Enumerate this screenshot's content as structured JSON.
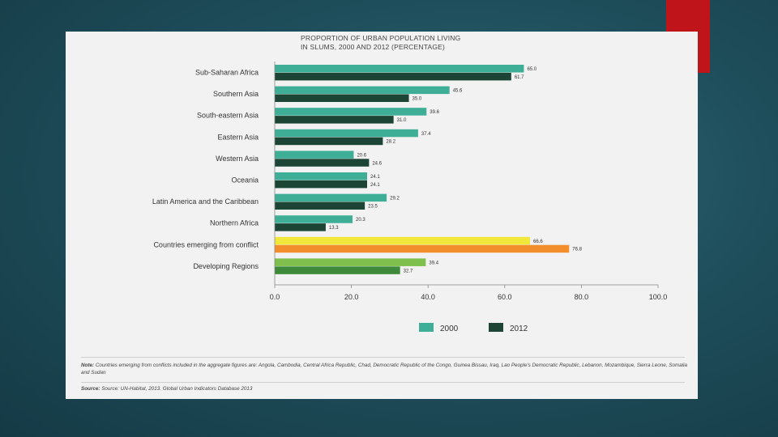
{
  "chart_data": {
    "type": "bar",
    "orientation": "horizontal",
    "title_lines": [
      "PROPORTION OF URBAN POPULATION LIVING",
      "IN SLUMS, 2000 AND 2012 (PERCENTAGE)"
    ],
    "categories": [
      "Sub-Saharan Africa",
      "Southern Asia",
      "South-eastern Asia",
      "Eastern Asia",
      "Western Asia",
      "Oceania",
      "Latin America and the Caribbean",
      "Northern Africa",
      "Countries emerging from conflict",
      "Developing Regions"
    ],
    "series": [
      {
        "name": "2000",
        "values": [
          65.0,
          45.6,
          39.6,
          37.4,
          20.6,
          24.1,
          29.2,
          20.3,
          66.6,
          39.4
        ]
      },
      {
        "name": "2012",
        "values": [
          61.7,
          35.0,
          31.0,
          28.2,
          24.6,
          24.1,
          23.5,
          13.3,
          76.8,
          32.7
        ]
      }
    ],
    "value_labels": [
      [
        "65.0",
        "61.7"
      ],
      [
        "45.6",
        "35.0"
      ],
      [
        "39.6",
        "31.0"
      ],
      [
        "37.4",
        "28.2"
      ],
      [
        "20.6",
        "24.6"
      ],
      [
        "24.1",
        "24.1"
      ],
      [
        "29.2",
        "23.5"
      ],
      [
        "20.3",
        "13.3"
      ],
      [
        "66.6",
        "76.8"
      ],
      [
        "39.4",
        "32.7"
      ]
    ],
    "xlim": [
      0,
      100
    ],
    "x_ticks": [
      "0.0",
      "20.0",
      "40.0",
      "60.0",
      "80.0",
      "100.0"
    ],
    "x_tick_values": [
      0,
      20,
      40,
      60,
      80,
      100
    ],
    "grid": false,
    "legend_position": "bottom-center",
    "colors": {
      "2000": "#3fae96",
      "2012": "#1d4535",
      "conflict_2000": "#f2e83c",
      "conflict_2012": "#f28f2c",
      "developing_2000": "#7fbf4d",
      "developing_2012": "#3f8a3a"
    }
  },
  "note": {
    "label": "Note:",
    "text": "Countries emerging from conflicts included in the aggregate figures are: Angola, Cambodia, Central Africa Republic, Chad, Democratic Republic of the Congo, Guinea Bissau, Iraq, Lao People's Democratic Republic, Lebanon, Mozambique, Sierra Leone, Somalia and Sudan"
  },
  "source": {
    "label": "Source:",
    "text": "Source: UN-Habitat, 2013. Global Urban Indicators Database 2013"
  }
}
